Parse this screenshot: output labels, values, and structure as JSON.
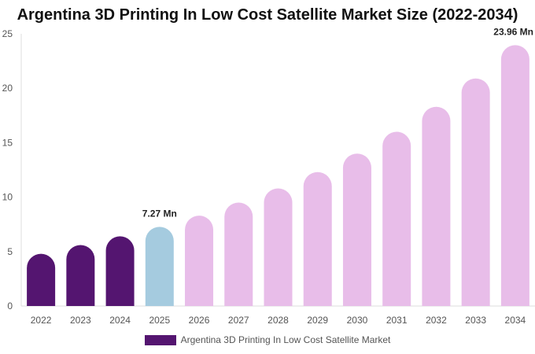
{
  "chart_data": {
    "type": "bar",
    "title": "Argentina 3D Printing In Low Cost Satellite Market Size (2022-2034)",
    "categories": [
      "2022",
      "2023",
      "2024",
      "2025",
      "2026",
      "2027",
      "2028",
      "2029",
      "2030",
      "2031",
      "2032",
      "2033",
      "2034"
    ],
    "series": [
      {
        "name": "Argentina 3D Printing In Low Cost Satellite Market",
        "values": [
          4.8,
          5.6,
          6.4,
          7.27,
          8.3,
          9.5,
          10.8,
          12.3,
          14.0,
          16.0,
          18.3,
          20.9,
          23.96
        ]
      }
    ],
    "data_labels": [
      {
        "index": 3,
        "text": "7.27 Mn"
      },
      {
        "index": 12,
        "text": "23.96 Mn"
      }
    ],
    "yticks": [
      "0",
      "5",
      "10",
      "15",
      "20",
      "25"
    ],
    "ylim": [
      0,
      25
    ],
    "xlabel": "",
    "ylabel": "",
    "legend_position": "bottom",
    "colors": {
      "historical": "#541570",
      "base_year": "#a5cbdf",
      "forecast": "#e8bde9",
      "axis": "#dddddd",
      "legend_swatch": "#541570"
    },
    "period_by_index": [
      "historical",
      "historical",
      "historical",
      "base_year",
      "forecast",
      "forecast",
      "forecast",
      "forecast",
      "forecast",
      "forecast",
      "forecast",
      "forecast",
      "forecast"
    ]
  }
}
